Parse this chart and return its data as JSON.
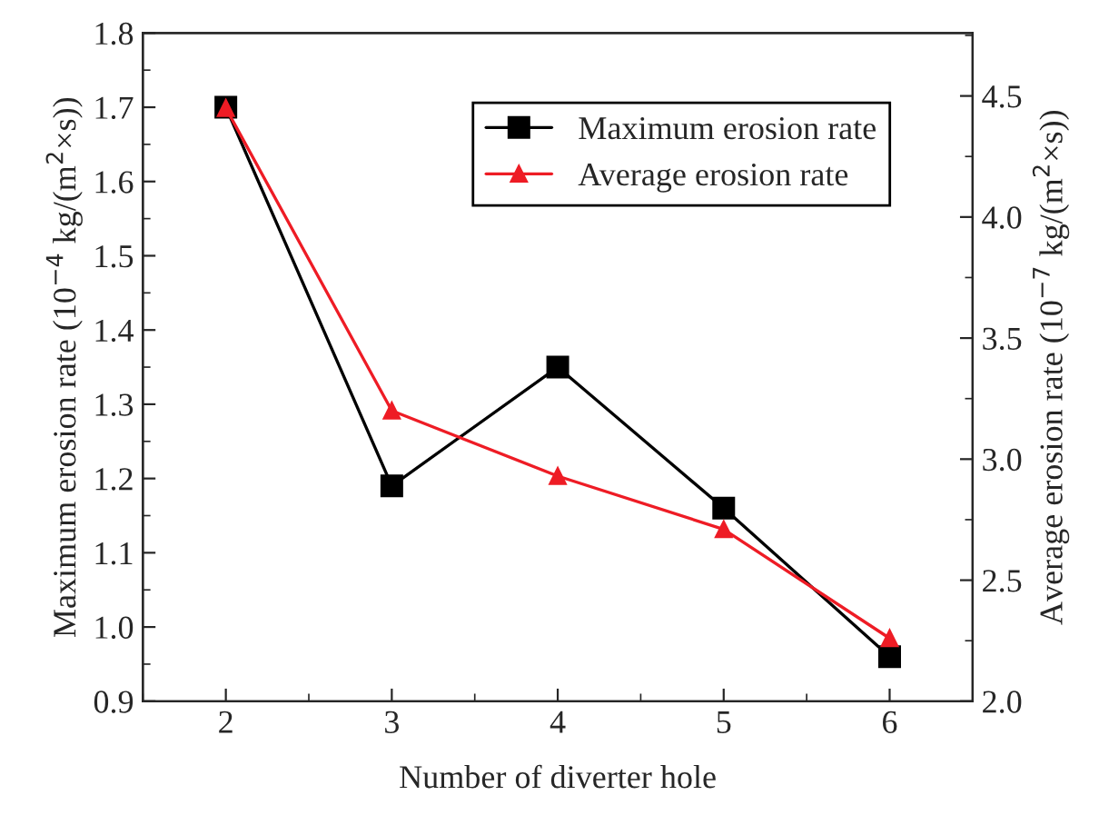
{
  "chart_data": {
    "type": "line",
    "xlabel": "Number of diverter hole",
    "ylabel": "Maximum erosion rate (10$^{−4}$ kg/(m$^{2}$×s))",
    "y2label": "Average erosion rate (10$^{−7}$ kg/(m$^{2}$×s))",
    "x": [
      2,
      3,
      4,
      5,
      6
    ],
    "xlim": [
      1.5,
      6.5
    ],
    "xticks": [
      2,
      3,
      4,
      5,
      6
    ],
    "ylim": [
      0.9,
      1.8
    ],
    "yticks": [
      0.9,
      {
        "value": 1.0,
        "label": "1.0"
      },
      1.1,
      1.2,
      1.3,
      1.4,
      1.5,
      1.6,
      1.7,
      1.8
    ],
    "y2lim": [
      2.0,
      4.76
    ],
    "y2ticks": [
      {
        "value": 2.0,
        "label": "2.0"
      },
      2.5,
      {
        "value": 3.0,
        "label": "3.0"
      },
      3.5,
      {
        "value": 4.0,
        "label": "4.0"
      },
      4.5
    ],
    "series": [
      {
        "name": "Maximum erosion rate",
        "color": "#000000",
        "values": [
          1.7,
          1.19,
          1.35,
          1.16,
          0.96
        ],
        "marker": "square"
      },
      {
        "name": "Average erosion rate",
        "color": "#ee1c25",
        "values": [
          4.45,
          3.2,
          2.93,
          2.71,
          2.26
        ],
        "marker": "triangle",
        "axis": "y2"
      }
    ],
    "legend": "top right",
    "grid": false,
    "line_style": "solid"
  }
}
